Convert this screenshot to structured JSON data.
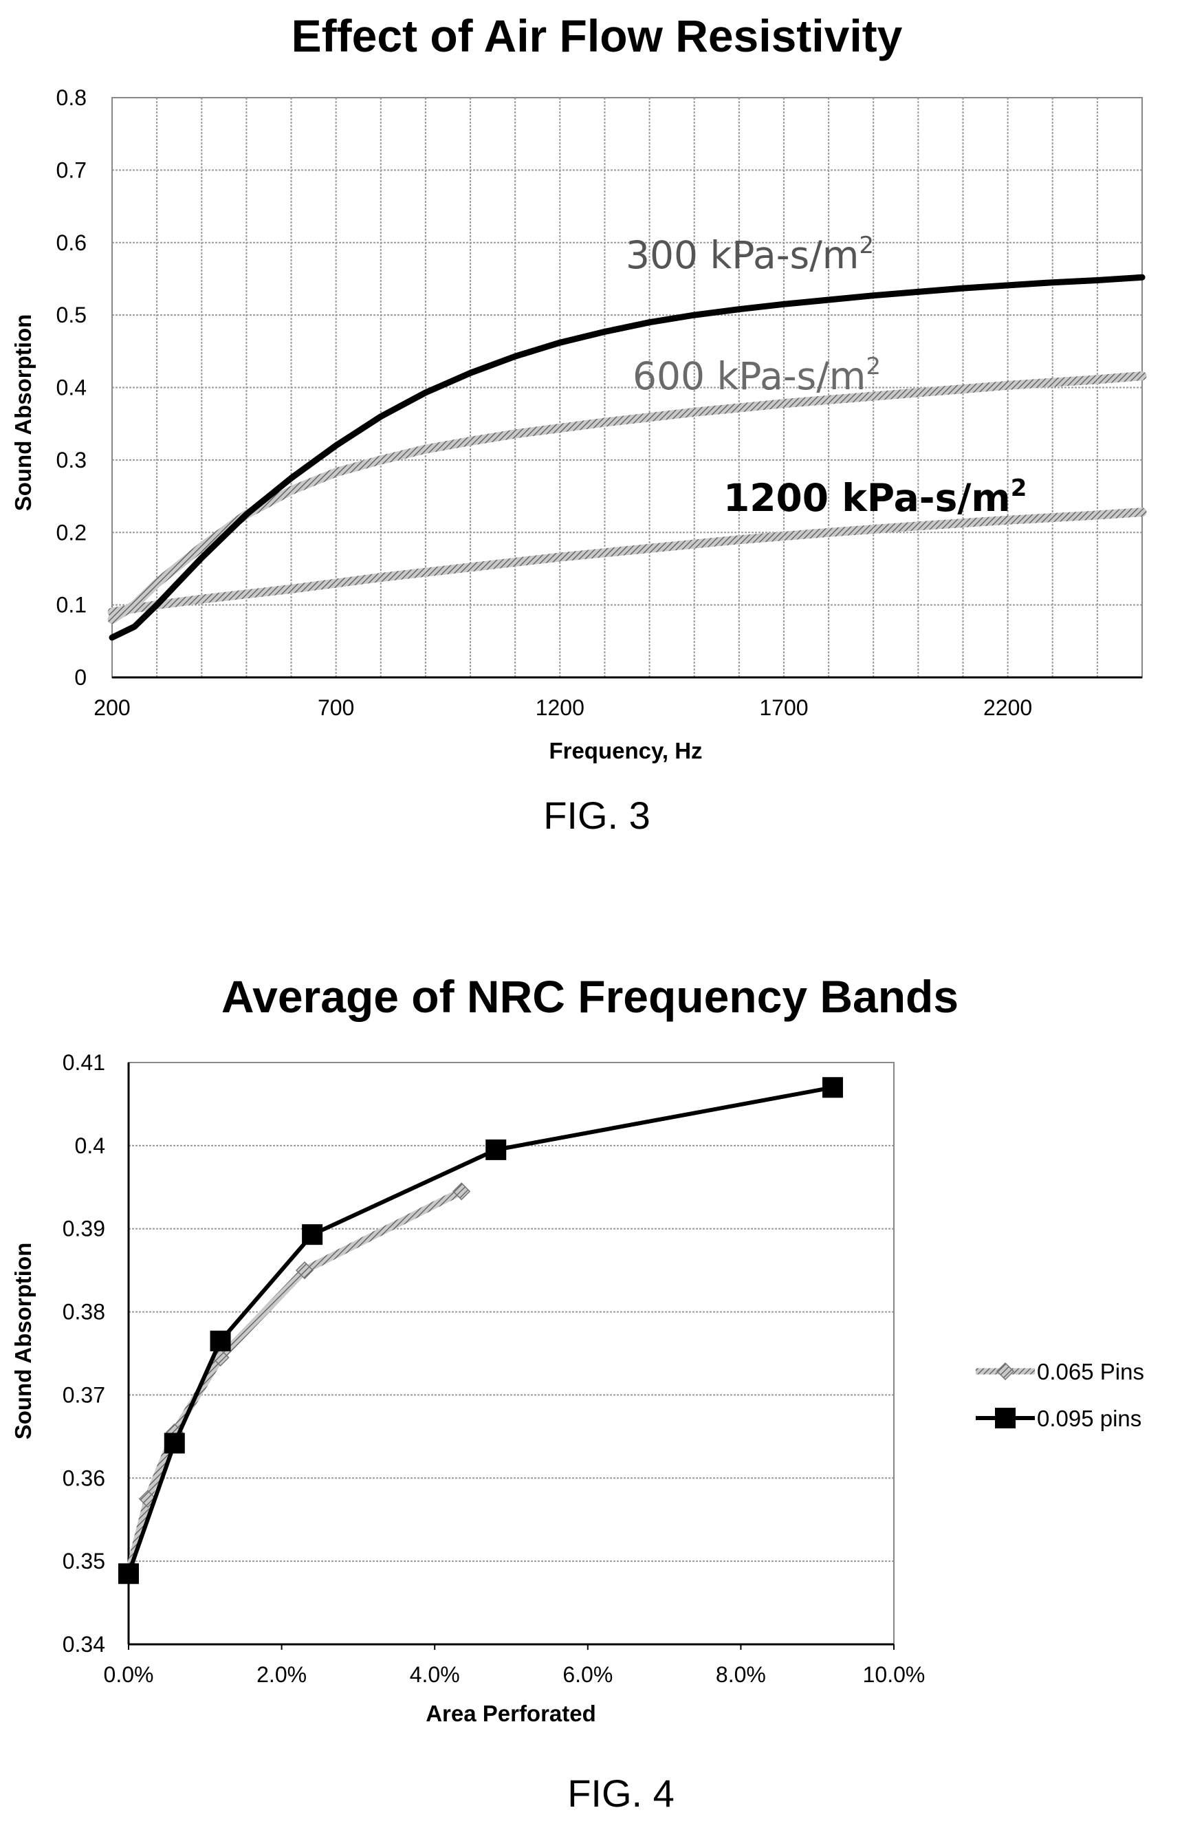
{
  "figures": [
    {
      "caption": "FIG. 3",
      "label_suffix": "2"
    },
    {
      "caption": "FIG. 4"
    }
  ],
  "chart_data": [
    {
      "type": "line",
      "title": "Effect of Air Flow Resistivity",
      "xlabel": "Frequency, Hz",
      "ylabel": "Sound Absorption",
      "xlim": [
        200,
        2500
      ],
      "ylim": [
        0,
        0.8
      ],
      "xticks": [
        200,
        700,
        1200,
        1700,
        2200
      ],
      "yticks": [
        0,
        0.1,
        0.2,
        0.3,
        0.4,
        0.5,
        0.6,
        0.7,
        0.8
      ],
      "ytick_labels": [
        "0",
        "0.1",
        "0.2",
        "0.3",
        "0.4",
        "0.5",
        "0.6",
        "0.7",
        "0.8"
      ],
      "grid": true,
      "legend": "none",
      "series": [
        {
          "name": "300 kPa-s/m",
          "color": "#000000",
          "style": "solid-thick",
          "label_color": "#555555",
          "x": [
            200,
            250,
            300,
            400,
            500,
            600,
            700,
            800,
            900,
            1000,
            1100,
            1200,
            1300,
            1400,
            1500,
            1600,
            1700,
            1800,
            1900,
            2000,
            2100,
            2200,
            2300,
            2400,
            2500
          ],
          "y": [
            0.055,
            0.07,
            0.1,
            0.165,
            0.225,
            0.275,
            0.32,
            0.36,
            0.393,
            0.42,
            0.443,
            0.462,
            0.477,
            0.49,
            0.5,
            0.508,
            0.515,
            0.521,
            0.527,
            0.532,
            0.537,
            0.541,
            0.545,
            0.548,
            0.552
          ]
        },
        {
          "name": "600 kPa-s/m",
          "color": "#8a8a8a",
          "style": "hatched",
          "label_color": "#6a6a6a",
          "x": [
            200,
            250,
            300,
            400,
            500,
            600,
            700,
            800,
            900,
            1000,
            1100,
            1200,
            1300,
            1400,
            1500,
            1600,
            1700,
            1800,
            1900,
            2000,
            2100,
            2200,
            2300,
            2400,
            2500
          ],
          "y": [
            0.08,
            0.1,
            0.13,
            0.18,
            0.225,
            0.258,
            0.283,
            0.3,
            0.315,
            0.326,
            0.336,
            0.344,
            0.352,
            0.359,
            0.366,
            0.372,
            0.378,
            0.383,
            0.388,
            0.393,
            0.398,
            0.403,
            0.407,
            0.411,
            0.416
          ]
        },
        {
          "name": "1200 kPa-s/m",
          "color": "#9a9a9a",
          "style": "hatched",
          "label_color": "#000000",
          "x": [
            200,
            300,
            400,
            600,
            800,
            1000,
            1200,
            1400,
            1600,
            1800,
            2000,
            2200,
            2400,
            2500
          ],
          "y": [
            0.09,
            0.1,
            0.108,
            0.122,
            0.138,
            0.152,
            0.166,
            0.178,
            0.19,
            0.2,
            0.209,
            0.217,
            0.224,
            0.228
          ]
        }
      ]
    },
    {
      "type": "line",
      "title": "Average of NRC Frequency Bands",
      "xlabel": "Area Perforated",
      "ylabel": "Sound Absorption",
      "xlim": [
        0,
        0.1
      ],
      "ylim": [
        0.34,
        0.41
      ],
      "xticks": [
        0,
        0.02,
        0.04,
        0.06,
        0.08,
        0.1
      ],
      "xtick_labels": [
        "0.0%",
        "2.0%",
        "4.0%",
        "6.0%",
        "8.0%",
        "10.0%"
      ],
      "yticks": [
        0.34,
        0.35,
        0.36,
        0.37,
        0.38,
        0.39,
        0.4,
        0.41
      ],
      "ytick_labels": [
        "0.34",
        "0.35",
        "0.36",
        "0.37",
        "0.38",
        "0.39",
        "0.4",
        "0.41"
      ],
      "grid": true,
      "legend": "right",
      "series": [
        {
          "name": "0.065 Pins",
          "color": "#9a9a9a",
          "marker": "diamond",
          "x": [
            0,
            0.0025,
            0.006,
            0.012,
            0.023,
            0.0435
          ],
          "y": [
            0.3485,
            0.3575,
            0.3655,
            0.3745,
            0.385,
            0.3945
          ]
        },
        {
          "name": "0.095 pins",
          "color": "#000000",
          "marker": "square",
          "x": [
            0,
            0.006,
            0.012,
            0.024,
            0.048,
            0.092
          ],
          "y": [
            0.3485,
            0.3642,
            0.3765,
            0.3893,
            0.3995,
            0.407
          ]
        }
      ]
    }
  ]
}
